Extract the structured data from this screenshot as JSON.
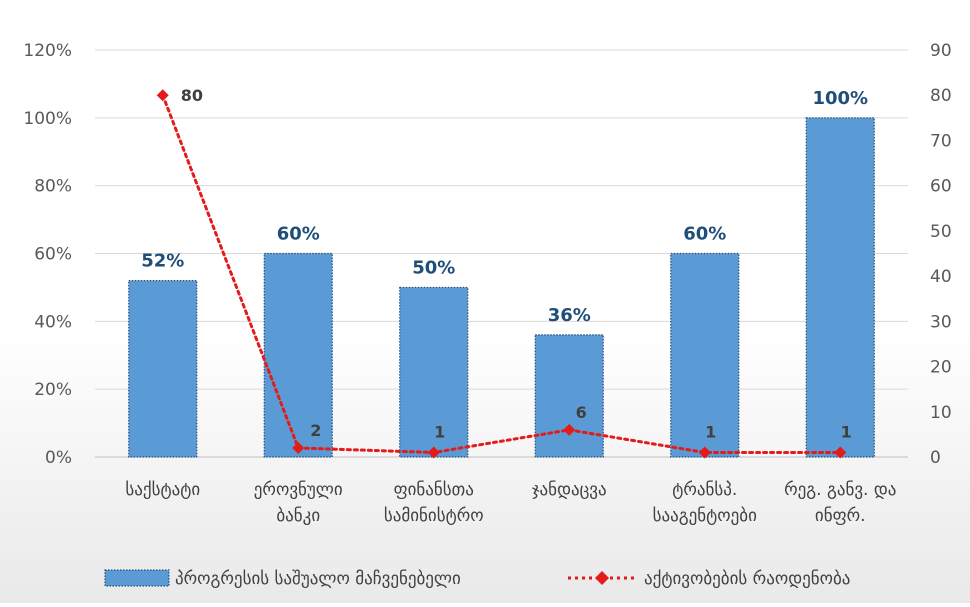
{
  "chart_data": {
    "type": "bar",
    "categories": [
      [
        "საქსტატი"
      ],
      [
        "ეროვნული",
        "ბანკი"
      ],
      [
        "ფინანსთა",
        "სამინისტრო"
      ],
      [
        "ჯანდაცვა"
      ],
      [
        "ტრანსპ.",
        "სააგენტოები"
      ],
      [
        "რეგ. განვ. და",
        "ინფრ."
      ]
    ],
    "series": [
      {
        "name": "პროგრესის საშუალო მაჩვენებელი",
        "type": "bar",
        "axis": "left",
        "color": "#5b9bd5",
        "values": [
          52,
          60,
          50,
          36,
          60,
          100
        ],
        "labels": [
          "52%",
          "60%",
          "50%",
          "36%",
          "60%",
          "100%"
        ]
      },
      {
        "name": "აქტივობების რაოდენობა",
        "type": "line",
        "axis": "right",
        "color": "#e31b1b",
        "style": "dotted",
        "marker": "diamond",
        "values": [
          80,
          2,
          1,
          6,
          1,
          1
        ],
        "labels": [
          "80",
          "2",
          "1",
          "6",
          "1",
          "1"
        ]
      }
    ],
    "y_left": {
      "min": 0,
      "max": 120,
      "step": 20,
      "ticks": [
        "0%",
        "20%",
        "40%",
        "60%",
        "80%",
        "100%",
        "120%"
      ]
    },
    "y_right": {
      "min": 0,
      "max": 90,
      "step": 10,
      "ticks": [
        "0",
        "10",
        "20",
        "30",
        "40",
        "50",
        "60",
        "70",
        "80",
        "90"
      ]
    },
    "grid": true,
    "legend_position": "bottom"
  }
}
